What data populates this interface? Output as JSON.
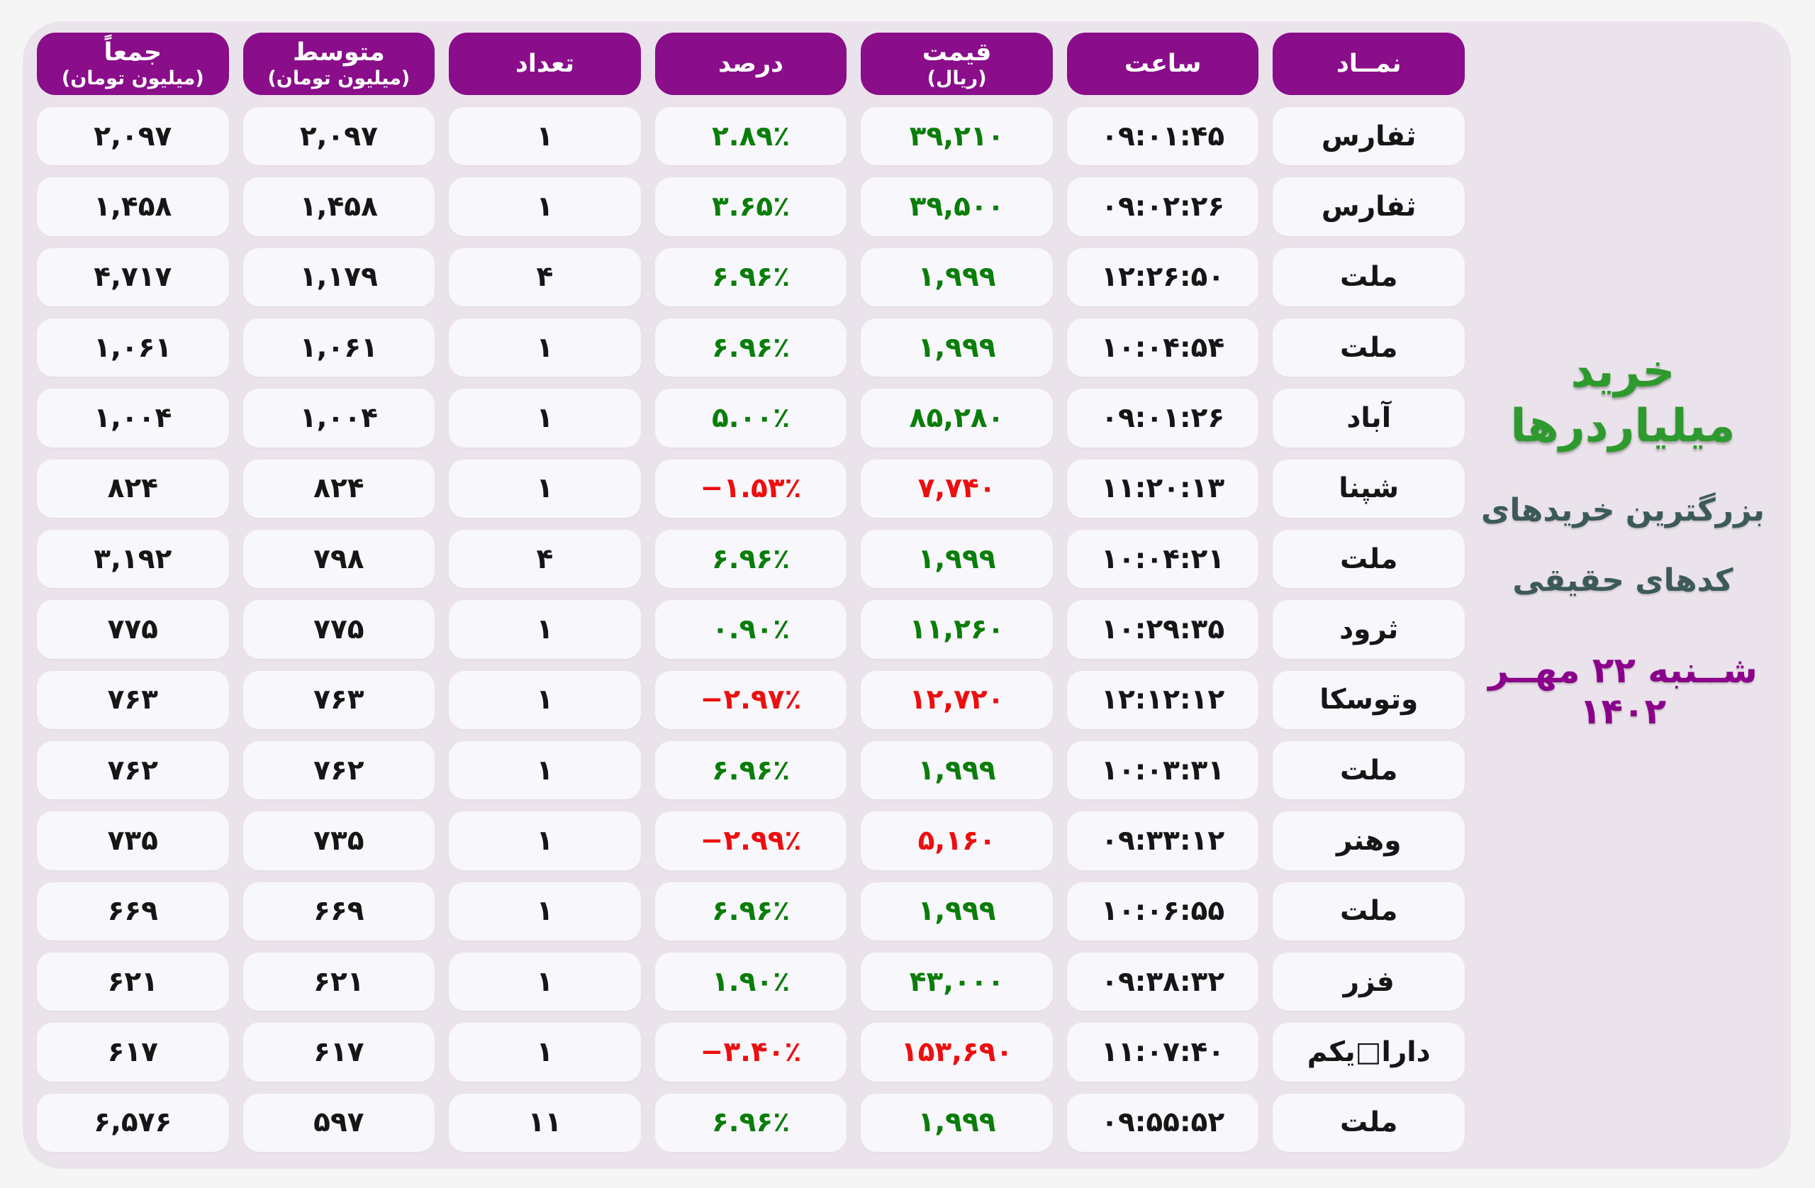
{
  "title_panel": {
    "title": "خرید میلیاردرها",
    "subtitle_line1": "بزرگترین خریدهای",
    "subtitle_line2": "کدهای حقیقی",
    "date": "شــنبه ۲۲ مهــر ۱۴۰۲"
  },
  "table": {
    "columns": [
      {
        "key": "symbol",
        "label": "نمــاد",
        "sublabel": ""
      },
      {
        "key": "time",
        "label": "ساعت",
        "sublabel": ""
      },
      {
        "key": "price",
        "label": "قیمت",
        "sublabel": "(ریال)"
      },
      {
        "key": "percent",
        "label": "درصد",
        "sublabel": ""
      },
      {
        "key": "count",
        "label": "تعداد",
        "sublabel": ""
      },
      {
        "key": "avg",
        "label": "متوسط",
        "sublabel": "(میلیون تومان)"
      },
      {
        "key": "total",
        "label": "جمعاً",
        "sublabel": "(میلیون تومان)"
      }
    ],
    "rows": [
      {
        "symbol": "ثفارس",
        "time": "۰۹:۰۱:۴۵",
        "price": "۳۹,۲۱۰",
        "percent": "۲.۸۹٪",
        "count": "۱",
        "avg": "۲,۰۹۷",
        "total": "۲,۰۹۷",
        "trend": "up"
      },
      {
        "symbol": "ثفارس",
        "time": "۰۹:۰۲:۲۶",
        "price": "۳۹,۵۰۰",
        "percent": "۳.۶۵٪",
        "count": "۱",
        "avg": "۱,۴۵۸",
        "total": "۱,۴۵۸",
        "trend": "up"
      },
      {
        "symbol": "ملت",
        "time": "۱۲:۲۶:۵۰",
        "price": "۱,۹۹۹",
        "percent": "۶.۹۶٪",
        "count": "۴",
        "avg": "۱,۱۷۹",
        "total": "۴,۷۱۷",
        "trend": "up"
      },
      {
        "symbol": "ملت",
        "time": "۱۰:۰۴:۵۴",
        "price": "۱,۹۹۹",
        "percent": "۶.۹۶٪",
        "count": "۱",
        "avg": "۱,۰۶۱",
        "total": "۱,۰۶۱",
        "trend": "up"
      },
      {
        "symbol": "آباد",
        "time": "۰۹:۰۱:۲۶",
        "price": "۸۵,۲۸۰",
        "percent": "۵.۰۰٪",
        "count": "۱",
        "avg": "۱,۰۰۴",
        "total": "۱,۰۰۴",
        "trend": "up"
      },
      {
        "symbol": "شپنا",
        "time": "۱۱:۲۰:۱۳",
        "price": "۷,۷۴۰",
        "percent": "−۱.۵۳٪",
        "count": "۱",
        "avg": "۸۲۴",
        "total": "۸۲۴",
        "trend": "down"
      },
      {
        "symbol": "ملت",
        "time": "۱۰:۰۴:۲۱",
        "price": "۱,۹۹۹",
        "percent": "۶.۹۶٪",
        "count": "۴",
        "avg": "۷۹۸",
        "total": "۳,۱۹۲",
        "trend": "up"
      },
      {
        "symbol": "ثرود",
        "time": "۱۰:۲۹:۳۵",
        "price": "۱۱,۲۶۰",
        "percent": "۰.۹۰٪",
        "count": "۱",
        "avg": "۷۷۵",
        "total": "۷۷۵",
        "trend": "up"
      },
      {
        "symbol": "وتوسکا",
        "time": "۱۲:۱۲:۱۲",
        "price": "۱۲,۷۲۰",
        "percent": "−۲.۹۷٪",
        "count": "۱",
        "avg": "۷۶۳",
        "total": "۷۶۳",
        "trend": "down"
      },
      {
        "symbol": "ملت",
        "time": "۱۰:۰۳:۳۱",
        "price": "۱,۹۹۹",
        "percent": "۶.۹۶٪",
        "count": "۱",
        "avg": "۷۶۲",
        "total": "۷۶۲",
        "trend": "up"
      },
      {
        "symbol": "وهنر",
        "time": "۰۹:۳۳:۱۲",
        "price": "۵,۱۶۰",
        "percent": "−۲.۹۹٪",
        "count": "۱",
        "avg": "۷۳۵",
        "total": "۷۳۵",
        "trend": "down"
      },
      {
        "symbol": "ملت",
        "time": "۱۰:۰۶:۵۵",
        "price": "۱,۹۹۹",
        "percent": "۶.۹۶٪",
        "count": "۱",
        "avg": "۶۶۹",
        "total": "۶۶۹",
        "trend": "up"
      },
      {
        "symbol": "فزر",
        "time": "۰۹:۳۸:۳۲",
        "price": "۴۳,۰۰۰",
        "percent": "۱.۹۰٪",
        "count": "۱",
        "avg": "۶۲۱",
        "total": "۶۲۱",
        "trend": "up"
      },
      {
        "symbol": "دارا□یکم",
        "time": "۱۱:۰۷:۴۰",
        "price": "۱۵۳,۶۹۰",
        "percent": "−۳.۴۰٪",
        "count": "۱",
        "avg": "۶۱۷",
        "total": "۶۱۷",
        "trend": "down"
      },
      {
        "symbol": "ملت",
        "time": "۰۹:۵۵:۵۲",
        "price": "۱,۹۹۹",
        "percent": "۶.۹۶٪",
        "count": "۱۱",
        "avg": "۵۹۷",
        "total": "۶,۵۷۶",
        "trend": "up"
      }
    ]
  },
  "colors": {
    "header_purple": "#8a0d8a",
    "board_background": "#ebe3eb",
    "cell_background": "#f8f7fc",
    "positive_green": "#0a7d0a",
    "negative_red": "#ec0f0f",
    "title_green": "#2d9a2d",
    "subtitle_teal": "#3d5a5a",
    "date_purple": "#8b008b"
  },
  "chart_data": {
    "type": "table",
    "title": "خرید میلیاردرها",
    "subtitle": "بزرگترین خریدهای کدهای حقیقی",
    "date": "شنبه ۲۲ مهر ۱۴۰۲",
    "columns": [
      "نماد",
      "ساعت",
      "قیمت (ریال)",
      "درصد",
      "تعداد",
      "متوسط (میلیون تومان)",
      "جمعاً (میلیون تومان)"
    ],
    "rows": [
      [
        "ثفارس",
        "09:01:45",
        39210,
        2.89,
        1,
        2097,
        2097
      ],
      [
        "ثفارس",
        "09:02:26",
        39500,
        3.65,
        1,
        1458,
        1458
      ],
      [
        "ملت",
        "12:26:50",
        1999,
        6.96,
        4,
        1179,
        4717
      ],
      [
        "ملت",
        "10:04:54",
        1999,
        6.96,
        1,
        1061,
        1061
      ],
      [
        "آباد",
        "09:01:26",
        85280,
        5.0,
        1,
        1004,
        1004
      ],
      [
        "شپنا",
        "11:20:13",
        7740,
        -1.53,
        1,
        824,
        824
      ],
      [
        "ملت",
        "10:04:21",
        1999,
        6.96,
        4,
        798,
        3192
      ],
      [
        "ثرود",
        "10:29:35",
        11260,
        0.9,
        1,
        775,
        775
      ],
      [
        "وتوسکا",
        "12:12:12",
        12720,
        -2.97,
        1,
        763,
        763
      ],
      [
        "ملت",
        "10:03:31",
        1999,
        6.96,
        1,
        762,
        762
      ],
      [
        "وهنر",
        "09:33:12",
        5160,
        -2.99,
        1,
        735,
        735
      ],
      [
        "ملت",
        "10:06:55",
        1999,
        6.96,
        1,
        669,
        669
      ],
      [
        "فزر",
        "09:38:32",
        43000,
        1.9,
        1,
        621,
        621
      ],
      [
        "دارا یکم",
        "11:07:40",
        153690,
        -3.4,
        1,
        617,
        617
      ],
      [
        "ملت",
        "09:55:52",
        1999,
        6.96,
        11,
        597,
        6576
      ]
    ]
  }
}
